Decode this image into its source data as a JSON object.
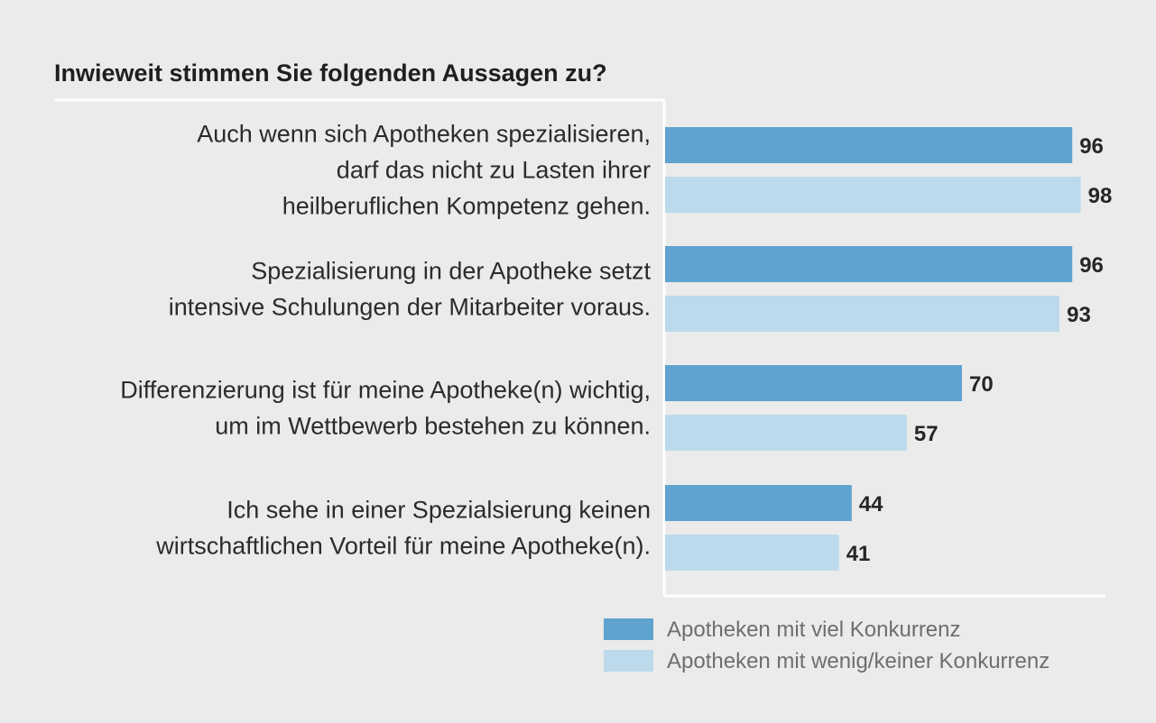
{
  "chart_data": {
    "type": "bar",
    "orientation": "horizontal",
    "title": "Inwieweit stimmen Sie folgenden Aussagen zu?",
    "categories": [
      [
        "Auch wenn sich Apotheken spezialisieren,",
        "darf das nicht zu Lasten ihrer",
        "heilberuflichen Kompetenz gehen."
      ],
      [
        "Spezialisierung in der Apotheke setzt",
        "intensive Schulungen der Mitarbeiter voraus."
      ],
      [
        "Differenzierung ist für meine Apotheke(n) wichtig,",
        "um im Wettbewerb bestehen zu können."
      ],
      [
        "Ich sehe in einer Spezialsierung keinen",
        "wirtschaftlichen Vorteil für meine Apotheke(n)."
      ]
    ],
    "series": [
      {
        "name": "Apotheken mit viel Konkurrenz",
        "color": "#5fa3cf",
        "values": [
          96,
          96,
          70,
          44
        ]
      },
      {
        "name": "Apotheken mit wenig/keiner Konkurrenz",
        "color": "#bcdaec",
        "values": [
          98,
          93,
          57,
          41
        ]
      }
    ],
    "xlim": [
      0,
      100
    ],
    "legend_position": "bottom-right",
    "grid": false
  }
}
